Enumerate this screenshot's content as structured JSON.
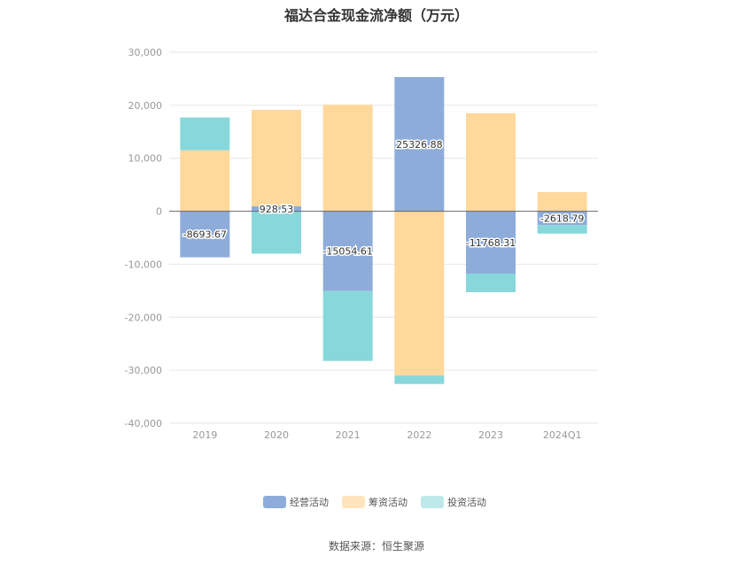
{
  "chart_data": {
    "type": "bar",
    "stacked": true,
    "title": "福达合金现金流净额（万元）",
    "categories": [
      "2019",
      "2020",
      "2021",
      "2022",
      "2023",
      "2024Q1"
    ],
    "ylim": [
      -40000,
      30000
    ],
    "yticks": [
      30000,
      20000,
      10000,
      0,
      -10000,
      -20000,
      -30000,
      -40000
    ],
    "ytick_labels": [
      "30,000",
      "20,000",
      "10,000",
      "0",
      "-10,000",
      "-20,000",
      "-30,000",
      "-40,000"
    ],
    "grid": true,
    "legend_position": "bottom",
    "series": [
      {
        "name": "经营活动",
        "color": "#8eacd9",
        "values": [
          -8693.67,
          928.53,
          -15054.61,
          25326.88,
          -11768.31,
          -2618.79
        ],
        "labels": [
          "-8693.67",
          "928.53",
          "-15054.61",
          "25326.88",
          "-11768.31",
          "-2618.79"
        ]
      },
      {
        "name": "筹资活动",
        "color": "#ffd89b",
        "values": [
          11500,
          18200,
          20100,
          -31000,
          18500,
          3600
        ]
      },
      {
        "name": "投资活动",
        "color": "#88d8db",
        "values": [
          6200,
          -8000,
          -13200,
          -1600,
          -3500,
          -1600
        ]
      }
    ],
    "legend_colors": [
      "#8eacd9",
      "#ffe5bd",
      "#bde9ea"
    ]
  },
  "source": "数据来源：恒生聚源"
}
